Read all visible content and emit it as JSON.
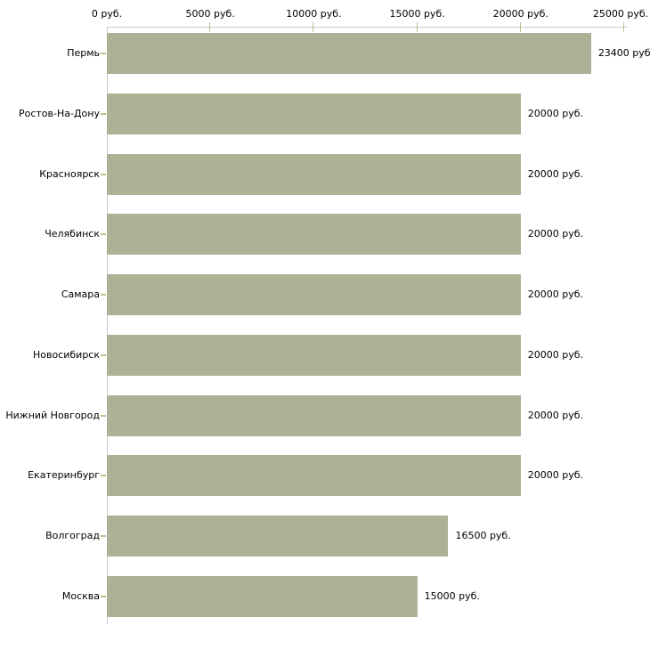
{
  "chart_data": {
    "type": "bar",
    "orientation": "horizontal",
    "title": "",
    "categories": [
      "Пермь",
      "Ростов-На-Дону",
      "Красноярск",
      "Челябинск",
      "Самара",
      "Новосибирск",
      "Нижний Новгород",
      "Екатеринбург",
      "Волгоград",
      "Москва"
    ],
    "values": [
      23400,
      20000,
      20000,
      20000,
      20000,
      20000,
      20000,
      20000,
      16500,
      15000
    ],
    "value_labels": [
      "23400 руб.",
      "20000 руб.",
      "20000 руб.",
      "20000 руб.",
      "20000 руб.",
      "20000 руб.",
      "20000 руб.",
      "20000 руб.",
      "16500 руб.",
      "15000 руб."
    ],
    "unit": "руб.",
    "x_axis": {
      "position": "top",
      "xlim": [
        0,
        25000
      ],
      "tick_values": [
        0,
        5000,
        10000,
        15000,
        20000,
        25000
      ],
      "tick_labels": [
        "0 руб.",
        "5000 руб.",
        "10000 руб.",
        "15000 руб.",
        "20000 руб.",
        "25000 руб."
      ]
    },
    "grid": false,
    "legend": false,
    "colors": {
      "bar": "#ACB296",
      "axis_line": "#CBCBCB",
      "tick_mark": "#C3BC8B",
      "text": "#000000",
      "background": "#FFFFFF"
    }
  }
}
